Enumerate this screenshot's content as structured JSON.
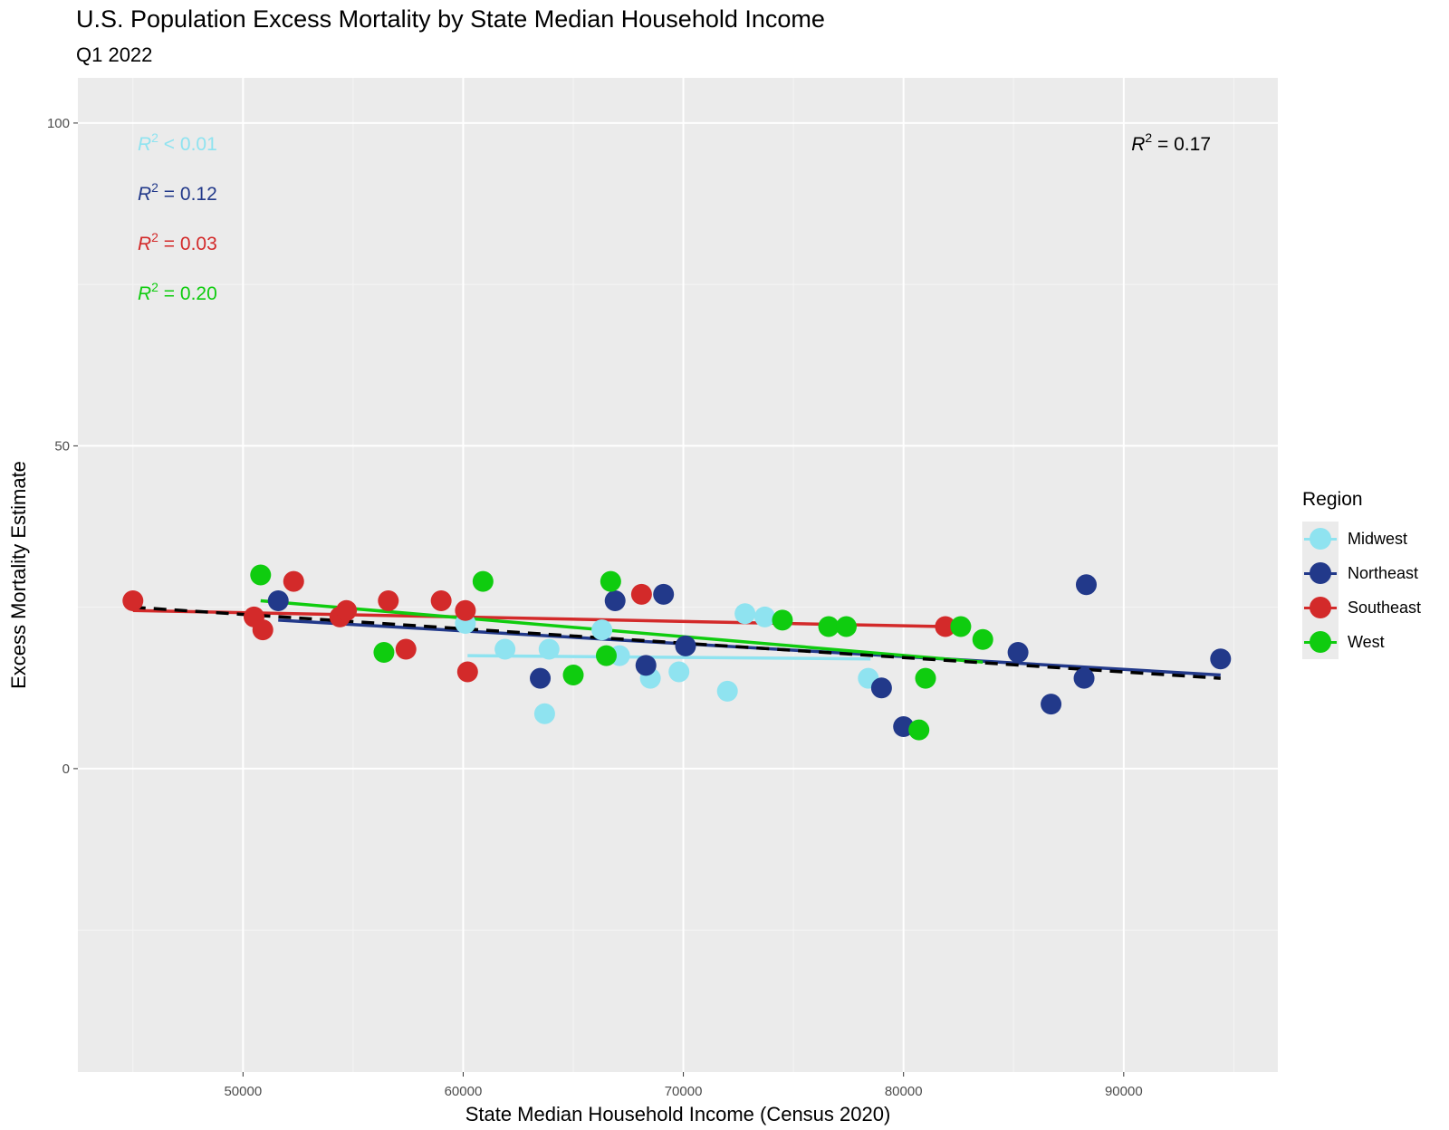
{
  "chart_data": {
    "type": "scatter",
    "title": "U.S. Population Excess Mortality by State Median Household Income",
    "subtitle": "Q1 2022",
    "xlabel": "State Median Household Income (Census 2020)",
    "ylabel": "Excess Mortality Estimate",
    "xlim": [
      42500,
      97000
    ],
    "ylim": [
      -47,
      107
    ],
    "x_ticks": [
      50000,
      60000,
      70000,
      80000,
      90000
    ],
    "y_ticks": [
      0,
      50,
      100
    ],
    "grid": true,
    "legend_title": "Region",
    "legend_position": "right",
    "overall_r2": "= 0.17",
    "series": [
      {
        "name": "Midwest",
        "color": "#8fe3f0",
        "r2": "< 0.01",
        "fit": [
          [
            60200,
            17.5
          ],
          [
            78500,
            17.0
          ]
        ],
        "points": [
          [
            60100,
            22.5
          ],
          [
            61900,
            18.5
          ],
          [
            63700,
            8.5
          ],
          [
            63900,
            18.5
          ],
          [
            66300,
            21.5
          ],
          [
            67100,
            17.5
          ],
          [
            68500,
            14
          ],
          [
            69800,
            15
          ],
          [
            72000,
            12
          ],
          [
            72800,
            24
          ],
          [
            73700,
            23.5
          ],
          [
            78400,
            14
          ]
        ]
      },
      {
        "name": "Northeast",
        "color": "#22398a",
        "r2": "= 0.12",
        "fit": [
          [
            51600,
            23
          ],
          [
            94400,
            14.5
          ]
        ],
        "points": [
          [
            51600,
            26
          ],
          [
            63500,
            14
          ],
          [
            66900,
            26
          ],
          [
            68300,
            16
          ],
          [
            69100,
            27
          ],
          [
            70100,
            19
          ],
          [
            79000,
            12.5
          ],
          [
            80000,
            6.5
          ],
          [
            85200,
            18
          ],
          [
            86700,
            10
          ],
          [
            88200,
            14
          ],
          [
            88300,
            28.5
          ],
          [
            94400,
            17
          ]
        ]
      },
      {
        "name": "Southeast",
        "color": "#d32a2a",
        "r2": "= 0.03",
        "fit": [
          [
            45000,
            24.5
          ],
          [
            81900,
            22
          ]
        ],
        "points": [
          [
            45000,
            26
          ],
          [
            50500,
            23.5
          ],
          [
            50900,
            21.5
          ],
          [
            52300,
            29
          ],
          [
            54400,
            23.5
          ],
          [
            54700,
            24.5
          ],
          [
            56600,
            26
          ],
          [
            57400,
            18.5
          ],
          [
            59000,
            26
          ],
          [
            60100,
            24.5
          ],
          [
            60200,
            15
          ],
          [
            68100,
            27
          ],
          [
            81900,
            22
          ]
        ]
      },
      {
        "name": "West",
        "color": "#0fcc0f",
        "r2": "= 0.20",
        "fit": [
          [
            50800,
            26
          ],
          [
            83600,
            16.5
          ]
        ],
        "points": [
          [
            50800,
            30
          ],
          [
            56400,
            18
          ],
          [
            60900,
            29
          ],
          [
            65000,
            14.5
          ],
          [
            66500,
            17.5
          ],
          [
            66700,
            29
          ],
          [
            74500,
            23
          ],
          [
            76600,
            22
          ],
          [
            77400,
            22
          ],
          [
            80700,
            6
          ],
          [
            81000,
            14
          ],
          [
            82600,
            22
          ],
          [
            83600,
            20
          ]
        ]
      }
    ],
    "overall_fit": [
      [
        45000,
        25
      ],
      [
        94400,
        14
      ]
    ]
  }
}
